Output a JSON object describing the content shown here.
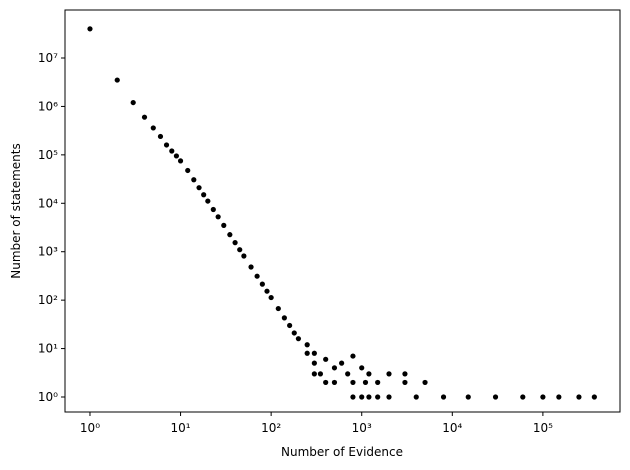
{
  "chart_data": {
    "type": "scatter",
    "xlabel": "Number of Evidence",
    "ylabel": "Number of statements",
    "xscale": "log",
    "yscale": "log",
    "color": "#000000",
    "xlim": [
      0.53,
      710000
    ],
    "ylim": [
      0.49,
      98000000
    ],
    "xticks": [
      {
        "value": 1,
        "label": "10⁰"
      },
      {
        "value": 10,
        "label": "10¹"
      },
      {
        "value": 100,
        "label": "10²"
      },
      {
        "value": 1000,
        "label": "10³"
      },
      {
        "value": 10000,
        "label": "10⁴"
      },
      {
        "value": 100000,
        "label": "10⁵"
      }
    ],
    "yticks": [
      {
        "value": 1,
        "label": "10⁰"
      },
      {
        "value": 10,
        "label": "10¹"
      },
      {
        "value": 100,
        "label": "10²"
      },
      {
        "value": 1000,
        "label": "10³"
      },
      {
        "value": 10000,
        "label": "10⁴"
      },
      {
        "value": 100000,
        "label": "10⁵"
      },
      {
        "value": 1000000,
        "label": "10⁶"
      },
      {
        "value": 10000000,
        "label": "10⁷"
      }
    ],
    "x": [
      1,
      2,
      3,
      4,
      5,
      6,
      7,
      8,
      9,
      10,
      12,
      14,
      16,
      18,
      20,
      23,
      26,
      30,
      35,
      40,
      45,
      50,
      60,
      70,
      80,
      90,
      100,
      120,
      140,
      160,
      180,
      200,
      250,
      300,
      350,
      400,
      250,
      300,
      300,
      400,
      500,
      500,
      600,
      700,
      800,
      800,
      800,
      1000,
      1000,
      1100,
      1200,
      1200,
      1500,
      1500,
      2000,
      2000,
      3000,
      3000,
      4000,
      5000,
      8000,
      15000,
      30000,
      60000,
      100000,
      150000,
      250000,
      370000
    ],
    "values": [
      40000000,
      3500000,
      1200000,
      600000,
      360000,
      240000,
      160000,
      120000,
      95000,
      75000,
      47600,
      30600,
      21000,
      15000,
      11100,
      7450,
      5260,
      3500,
      2250,
      1540,
      1100,
      815,
      483,
      312,
      214,
      153,
      113,
      67,
      43,
      30,
      21,
      16,
      8,
      5,
      3,
      2,
      12,
      8,
      3,
      6,
      4,
      2,
      5,
      3,
      7,
      2,
      1,
      4,
      1,
      2,
      3,
      1,
      2,
      1,
      3,
      1,
      2,
      3,
      1,
      2,
      1,
      1,
      1,
      1,
      1,
      1,
      1,
      1
    ]
  }
}
